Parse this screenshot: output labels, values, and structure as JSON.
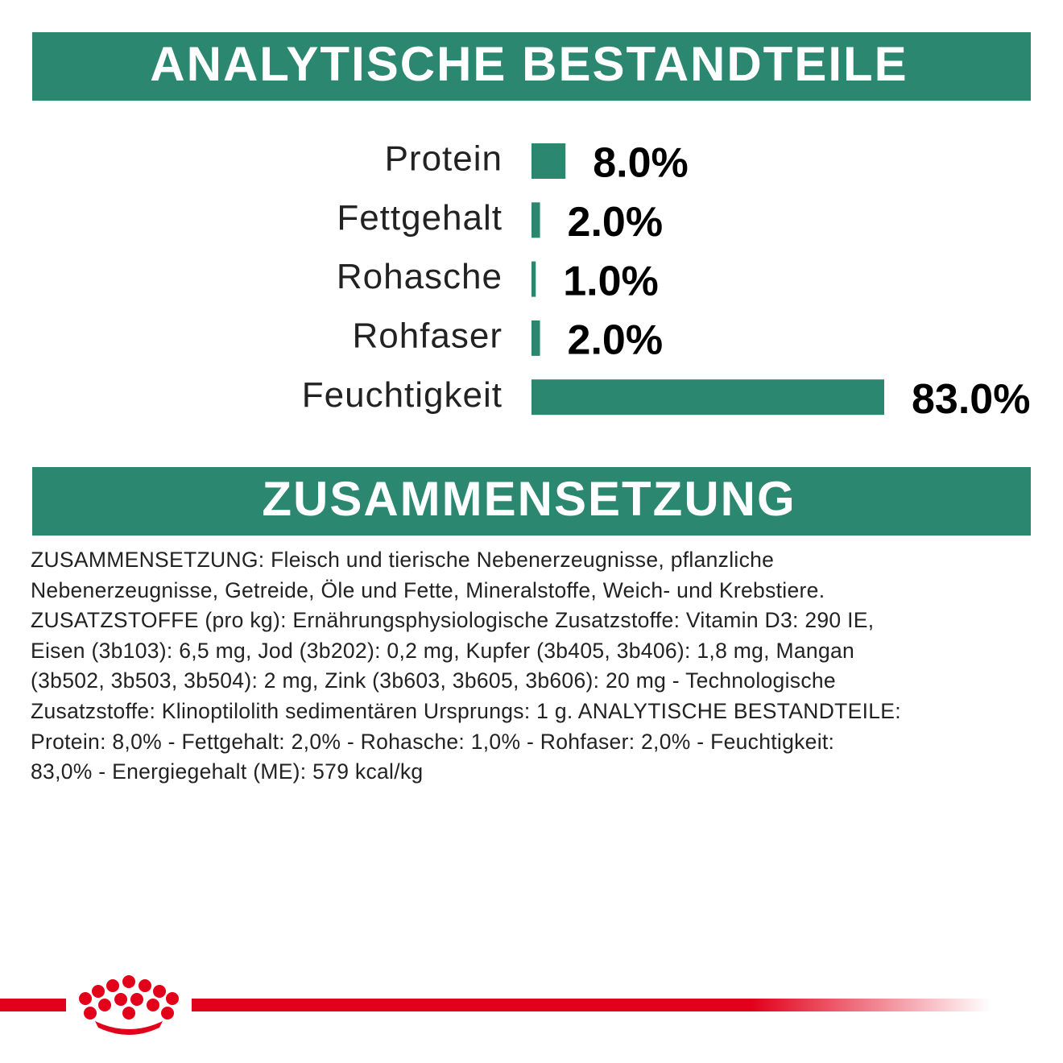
{
  "chart_data": {
    "type": "bar",
    "orientation": "horizontal",
    "title": "ANALYTISCHE BESTANDTEILE",
    "categories": [
      "Protein",
      "Fettgehalt",
      "Rohasche",
      "Rohfaser",
      "Feuchtigkeit"
    ],
    "values": [
      8.0,
      2.0,
      1.0,
      2.0,
      83.0
    ],
    "value_labels": [
      "8.0%",
      "2.0%",
      "1.0%",
      "2.0%",
      "83.0%"
    ],
    "color": "#2b8770"
  },
  "composition": {
    "title": "ZUSAMMENSETZUNG",
    "lines": [
      "ZUSAMMENSETZUNG: Fleisch und tierische Nebenerzeugnisse, pflanzliche",
      "Nebenerzeugnisse, Getreide, Öle und Fette, Mineralstoffe, Weich- und Krebstiere.",
      "ZUSATZSTOFFE (pro kg): Ernährungsphysiologische Zusatzstoffe: Vitamin D3: 290 IE,",
      "Eisen (3b103): 6,5 mg, Jod (3b202): 0,2 mg, Kupfer (3b405, 3b406): 1,8 mg, Mangan",
      "(3b502, 3b503, 3b504): 2 mg, Zink (3b603, 3b605, 3b606): 20 mg - Technologische",
      "Zusatzstoffe: Klinoptilolith sedimentären Ursprungs: 1 g. ANALYTISCHE BESTANDTEILE:",
      "Protein: 8,0% - Fettgehalt: 2,0% - Rohasche: 1,0% - Rohfaser: 2,0% - Feuchtigkeit:",
      "83,0% - Energiegehalt (ME): 579 kcal/kg"
    ]
  }
}
